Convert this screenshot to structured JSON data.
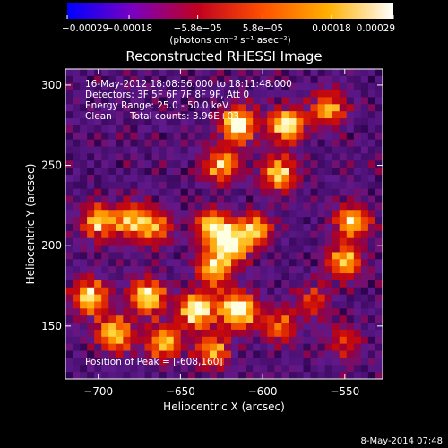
{
  "chart_data": {
    "type": "heatmap",
    "title": "Reconstructed RHESSI Image",
    "xlabel": "Heliocentric X (arcsec)",
    "ylabel": "Heliocentric Y (arcsec)",
    "xlim": [
      -720,
      -527
    ],
    "ylim": [
      117,
      310
    ],
    "x_ticks": [
      -700,
      -650,
      -600,
      -550
    ],
    "y_ticks": [
      150,
      200,
      250,
      300
    ],
    "x_tick_labels": [
      "−700",
      "−650",
      "−600",
      "−550"
    ],
    "y_tick_labels": [
      "150",
      "200",
      "250",
      "300"
    ],
    "colorbar": {
      "range": [
        -0.00029,
        0.00029
      ],
      "ticks": [
        -0.00029,
        -0.00018,
        -5.8e-05,
        5.8e-05,
        0.00018,
        0.00029
      ],
      "tick_labels": [
        "−0.00029",
        "−0.00018",
        "−5.8e−05",
        "5.8e−05",
        "0.00018",
        "0.00029"
      ],
      "unit_label": "(photons cm⁻² s⁻¹ asec⁻²)",
      "colormap": [
        "#0000ff",
        "#7a00c0",
        "#c00020",
        "#ff5000",
        "#ffb000",
        "#ffffff"
      ]
    },
    "annotations": {
      "time_range": "16-May-2012 18:08:56.000 to 18:11:48.000",
      "detectors": "Detectors: 3F 5F 6F 7F 8F 9F, Att 0",
      "energy_range": "Energy Range: 25.0 - 50.0 keV",
      "clean": "Clean",
      "total_counts": "Total counts: 3.96E+03",
      "peak": "Position of Peak = [-608,160]"
    },
    "sources": [
      {
        "x": -615,
        "y": 275,
        "intensity": 0.95
      },
      {
        "x": -585,
        "y": 275,
        "intensity": 0.85
      },
      {
        "x": -560,
        "y": 285,
        "intensity": 0.65
      },
      {
        "x": -625,
        "y": 250,
        "intensity": 0.7
      },
      {
        "x": -590,
        "y": 245,
        "intensity": 0.75
      },
      {
        "x": -700,
        "y": 215,
        "intensity": 0.7
      },
      {
        "x": -680,
        "y": 215,
        "intensity": 0.65
      },
      {
        "x": -665,
        "y": 212,
        "intensity": 0.55
      },
      {
        "x": -630,
        "y": 212,
        "intensity": 0.75
      },
      {
        "x": -620,
        "y": 200,
        "intensity": 0.8
      },
      {
        "x": -605,
        "y": 210,
        "intensity": 0.7
      },
      {
        "x": -545,
        "y": 215,
        "intensity": 0.75
      },
      {
        "x": -550,
        "y": 190,
        "intensity": 0.7
      },
      {
        "x": -705,
        "y": 168,
        "intensity": 0.8
      },
      {
        "x": -670,
        "y": 168,
        "intensity": 0.85
      },
      {
        "x": -640,
        "y": 160,
        "intensity": 0.95
      },
      {
        "x": -615,
        "y": 160,
        "intensity": 1.0
      },
      {
        "x": -630,
        "y": 185,
        "intensity": 0.7
      },
      {
        "x": -690,
        "y": 145,
        "intensity": 0.75
      },
      {
        "x": -660,
        "y": 140,
        "intensity": 0.7
      },
      {
        "x": -630,
        "y": 135,
        "intensity": 0.6
      },
      {
        "x": -590,
        "y": 150,
        "intensity": 0.5
      },
      {
        "x": -570,
        "y": 165,
        "intensity": 0.4
      },
      {
        "x": -550,
        "y": 140,
        "intensity": 0.35
      }
    ]
  },
  "footer": {
    "timestamp": "8-May-2014 07:48"
  }
}
